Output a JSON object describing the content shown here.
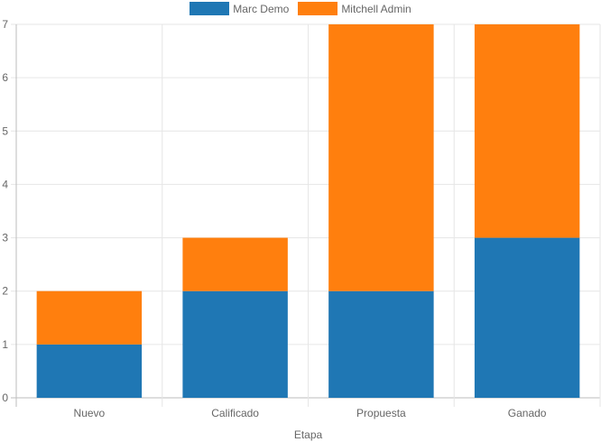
{
  "chart_data": {
    "type": "bar",
    "stacked": true,
    "categories": [
      "Nuevo",
      "Calificado",
      "Propuesta",
      "Ganado"
    ],
    "series": [
      {
        "name": "Marc Demo",
        "color": "#1f77b4",
        "values": [
          1,
          2,
          2,
          3
        ]
      },
      {
        "name": "Mitchell Admin",
        "color": "#ff7f0e",
        "values": [
          1,
          1,
          5,
          4
        ]
      }
    ],
    "xlabel": "Etapa",
    "ylabel": "",
    "ylim": [
      0,
      7
    ],
    "yticks": [
      "0",
      "1",
      "2",
      "3",
      "4",
      "5",
      "6",
      "7"
    ],
    "grid": true,
    "legend_position": "top-center"
  }
}
